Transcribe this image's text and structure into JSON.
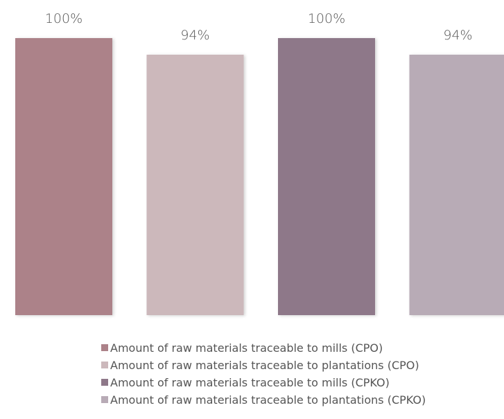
{
  "chart_data": {
    "type": "bar",
    "categories": [
      "Amount of raw materials traceable to mills (CPO)",
      "Amount of raw materials traceable to plantations (CPO)",
      "Amount of raw materials traceable to mills (CPKO)",
      "Amount of raw materials traceable to plantations (CPKO)"
    ],
    "values": [
      100,
      94,
      100,
      94
    ],
    "value_labels": [
      "100%",
      "94%",
      "100%",
      "94%"
    ],
    "colors": [
      "#ac8289",
      "#ccb8bb",
      "#8e7889",
      "#b8abb6"
    ],
    "ylim": [
      0,
      100
    ],
    "grid": false,
    "legend_position": "bottom",
    "title": "",
    "xlabel": "",
    "ylabel": ""
  },
  "legend": {
    "items": [
      {
        "label": "Amount of raw materials traceable to mills (CPO)",
        "color": "#ac8289"
      },
      {
        "label": "Amount of raw materials traceable to plantations (CPO)",
        "color": "#ccb8bb"
      },
      {
        "label": "Amount of raw materials traceable to mills (CPKO)",
        "color": "#8e7889"
      },
      {
        "label": "Amount of raw materials traceable to plantations (CPKO)",
        "color": "#b8abb6"
      }
    ]
  }
}
